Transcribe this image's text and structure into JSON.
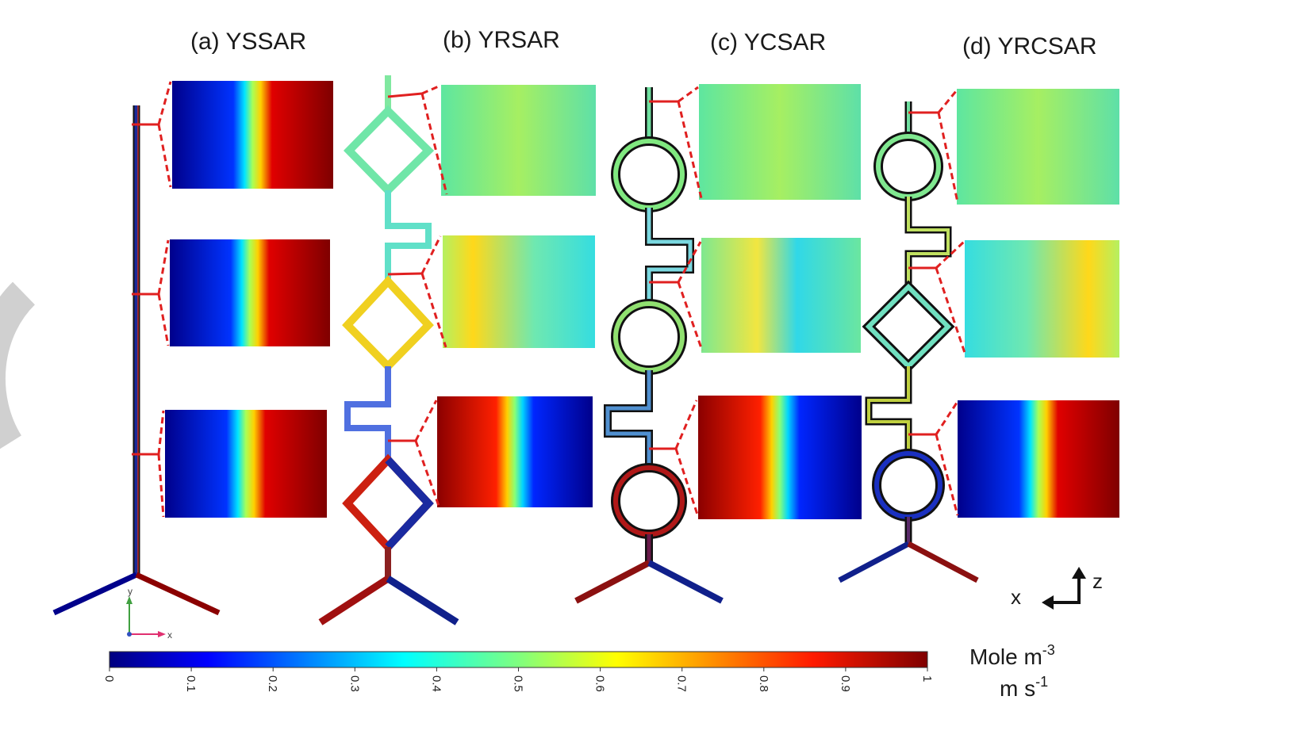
{
  "panels": [
    {
      "id": "a",
      "title": "(a) YSSAR"
    },
    {
      "id": "b",
      "title": "(b) YRSAR"
    },
    {
      "id": "c",
      "title": "(c) YCSAR"
    },
    {
      "id": "d",
      "title": "(d) YRCSAR"
    }
  ],
  "colorbar": {
    "ticks": [
      "0",
      "0.1",
      "0.2",
      "0.3",
      "0.4",
      "0.5",
      "0.6",
      "0.7",
      "0.8",
      "0.9",
      "1"
    ],
    "unit_line1": "Mole m",
    "unit_line1_sup": "-3",
    "unit_line2": "m s",
    "unit_line2_sup": "-1"
  },
  "axes_small": {
    "y": "y",
    "x": "x"
  },
  "axes_large": {
    "x": "x",
    "z": "z"
  },
  "colors": {
    "blue": "#00008b",
    "red": "#8b0000",
    "connector": "#e02020"
  }
}
